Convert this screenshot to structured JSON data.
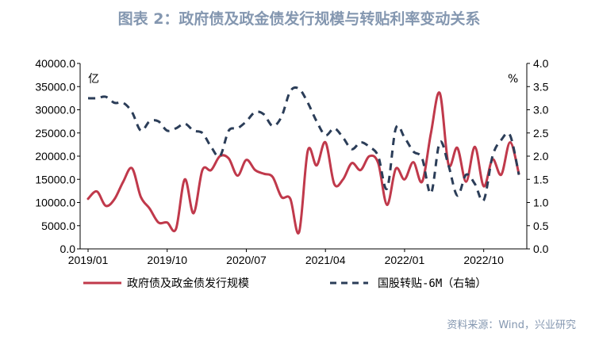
{
  "figure": {
    "title": "图表 2：政府债及政金债发行规模与转贴利率变动关系",
    "source": "资料来源：Wind，兴业研究"
  },
  "colors": {
    "title": "#8497b0",
    "source": "#8497b0",
    "series_red": "#c0394b",
    "series_navy": "#2b3d58"
  },
  "chart_data": {
    "type": "line",
    "x_tick_labels": [
      "2019/01",
      "2019/10",
      "2020/07",
      "2021/04",
      "2022/01",
      "2022/10"
    ],
    "left_axis": {
      "unit": "亿",
      "ylim": [
        0,
        40000
      ],
      "tick_labels": [
        "0.0",
        "5000.0",
        "10000.0",
        "15000.0",
        "20000.0",
        "25000.0",
        "30000.0",
        "35000.0",
        "40000.0"
      ]
    },
    "right_axis": {
      "unit": "%",
      "ylim": [
        0,
        4
      ],
      "tick_labels": [
        "0.0",
        "0.5",
        "1.0",
        "1.5",
        "2.0",
        "2.5",
        "3.0",
        "3.5",
        "4.0"
      ]
    },
    "x": [
      "2019/01",
      "2019/02",
      "2019/03",
      "2019/04",
      "2019/05",
      "2019/06",
      "2019/07",
      "2019/08",
      "2019/09",
      "2019/10",
      "2019/11",
      "2019/12",
      "2020/01",
      "2020/02",
      "2020/03",
      "2020/04",
      "2020/05",
      "2020/06",
      "2020/07",
      "2020/08",
      "2020/09",
      "2020/10",
      "2020/11",
      "2020/12",
      "2021/01",
      "2021/02",
      "2021/03",
      "2021/04",
      "2021/05",
      "2021/06",
      "2021/07",
      "2021/08",
      "2021/09",
      "2021/10",
      "2021/11",
      "2021/12",
      "2022/01",
      "2022/02",
      "2022/03",
      "2022/04",
      "2022/05",
      "2022/06",
      "2022/07",
      "2022/08",
      "2022/09",
      "2022/10",
      "2022/11",
      "2022/12",
      "2023/01",
      "2023/02"
    ],
    "series": [
      {
        "name": "政府债及政金债发行规模",
        "axis": "left",
        "style": "solid",
        "values": [
          10800,
          12400,
          9300,
          10700,
          14500,
          17400,
          11200,
          8700,
          5700,
          5700,
          4300,
          15000,
          7700,
          17000,
          17000,
          20000,
          19500,
          15800,
          19200,
          17000,
          16200,
          15500,
          11200,
          10800,
          3600,
          21200,
          18000,
          23000,
          14000,
          15000,
          18500,
          17000,
          20000,
          18500,
          9500,
          17300,
          15000,
          18700,
          14500,
          25000,
          33600,
          18200,
          21800,
          14500,
          22000,
          13500,
          19300,
          16000,
          23000,
          16200
        ]
      },
      {
        "name": "国股转贴-6M（右轴）",
        "axis": "right",
        "style": "dashed",
        "values": [
          3.25,
          3.25,
          3.28,
          3.15,
          3.15,
          2.95,
          2.55,
          2.75,
          2.75,
          2.55,
          2.6,
          2.7,
          2.55,
          2.5,
          2.2,
          2.0,
          2.55,
          2.6,
          2.75,
          2.95,
          2.9,
          2.65,
          2.85,
          3.4,
          3.45,
          3.15,
          2.75,
          2.45,
          2.6,
          2.4,
          2.15,
          2.3,
          2.2,
          2.0,
          1.3,
          2.6,
          2.4,
          2.1,
          1.95,
          1.2,
          2.3,
          1.8,
          1.15,
          1.6,
          1.4,
          1.05,
          2.0,
          2.35,
          2.45,
          1.6
        ]
      }
    ],
    "grid": false,
    "legend_position": "bottom"
  }
}
